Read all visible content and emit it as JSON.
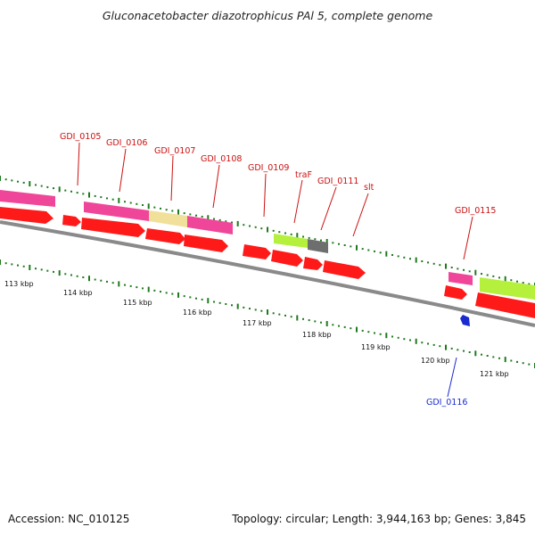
{
  "header": {
    "title": "Gluconacetobacter diazotrophicus PAl 5, complete genome"
  },
  "footer": {
    "accession": "Accession: NC_010125",
    "summary": "Topology: circular; Length: 3,944,163 bp; Genes: 3,845"
  },
  "colors": {
    "backbone": "#8a8a8a",
    "cds": "#ff1a1a",
    "magenta": "#f0469a",
    "khaki": "#f0e09a",
    "lime": "#b4f03c",
    "gray": "#6e6e6e",
    "tick": "#1e7a1e",
    "upper_label": "#cc1111",
    "lower_label": "#1a2ad0"
  },
  "scale": {
    "labels": [
      "113 kbp",
      "114 kbp",
      "115 kbp",
      "116 kbp",
      "117 kbp",
      "118 kbp",
      "119 kbp",
      "120 kbp",
      "121 kbp"
    ]
  },
  "gene_labels": [
    {
      "text": "GDI_0105",
      "strand": "upper"
    },
    {
      "text": "GDI_0106",
      "strand": "upper"
    },
    {
      "text": "GDI_0107",
      "strand": "upper"
    },
    {
      "text": "GDI_0108",
      "strand": "upper"
    },
    {
      "text": "GDI_0109",
      "strand": "upper"
    },
    {
      "text": "traF",
      "strand": "upper"
    },
    {
      "text": "GDI_0111",
      "strand": "upper"
    },
    {
      "text": "slt",
      "strand": "upper"
    },
    {
      "text": "GDI_0115",
      "strand": "upper"
    },
    {
      "text": "GDI_0116",
      "strand": "lower"
    }
  ]
}
